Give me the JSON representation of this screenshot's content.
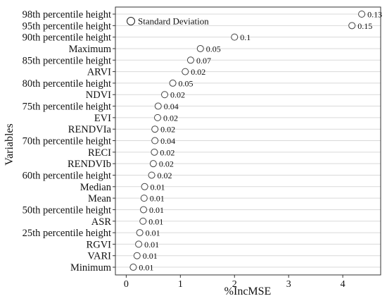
{
  "chart_data": {
    "type": "scatter",
    "xlabel": "%IncMSE",
    "ylabel": "Variables",
    "xlim": [
      -0.2,
      4.7
    ],
    "xticks": [
      0,
      1,
      2,
      3,
      4
    ],
    "grid": "horizontal",
    "legend": {
      "label": "Standard Deviation",
      "placement": "top-left"
    },
    "categories": [
      "98th percentile height",
      "95th percentile height",
      "90th percentile height",
      "Maximum",
      "85th percentile height",
      "ARVI",
      "80th percentile height",
      "NDVI",
      "75th percentile height",
      "EVI",
      "RENDVIa",
      "70th percentile height",
      "RECI",
      "RENDVIb",
      "60th percentile height",
      "Median",
      "Mean",
      "50th percentile height",
      "ASR",
      "25th percentile height",
      "RGVI",
      "VARI",
      "Minimum"
    ],
    "values": [
      4.35,
      4.17,
      2.0,
      1.37,
      1.19,
      1.09,
      0.86,
      0.71,
      0.59,
      0.58,
      0.53,
      0.53,
      0.52,
      0.5,
      0.47,
      0.34,
      0.33,
      0.32,
      0.31,
      0.25,
      0.23,
      0.2,
      0.13
    ],
    "sd_labels": [
      "0.13",
      "0.15",
      "0.1",
      "0.05",
      "0.07",
      "0.02",
      "0.05",
      "0.02",
      "0.04",
      "0.02",
      "0.02",
      "0.04",
      "0.02",
      "0.02",
      "0.02",
      "0.01",
      "0.01",
      "0.01",
      "0.01",
      "0.01",
      "0.01",
      "0.01",
      "0.01"
    ]
  }
}
